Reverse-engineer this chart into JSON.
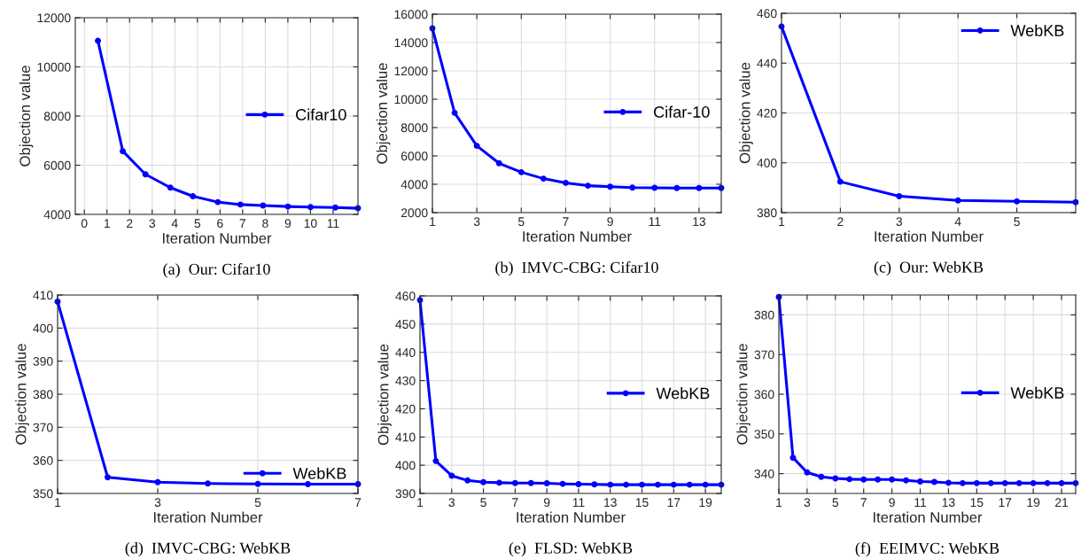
{
  "chart_data": [
    {
      "type": "line",
      "title": "(a)  Our: Cifar10",
      "xlabel": "Iteration Number",
      "ylabel": "Objection value",
      "x": [
        0.6,
        1.7,
        2.7,
        3.8,
        4.8,
        5.9,
        6.9,
        7.9,
        9.0,
        10.0,
        11.1,
        12.1
      ],
      "series": [
        {
          "name": "Cifar10",
          "color": "#0000ff",
          "values": [
            11060,
            6570,
            5630,
            5090,
            4740,
            4500,
            4400,
            4360,
            4320,
            4300,
            4280,
            4250
          ]
        }
      ],
      "xlim": [
        -0.4,
        12.1
      ],
      "xticks": [
        0,
        1,
        2,
        3,
        4,
        5,
        6,
        7,
        8,
        9,
        10,
        11
      ],
      "ylim": [
        4000,
        12000
      ],
      "yticks": [
        4000,
        6000,
        8000,
        10000,
        12000
      ],
      "grid": true,
      "legend": "center right",
      "marker": "circle",
      "line_style": "solid"
    },
    {
      "type": "line",
      "title": "(b)  IMVC-CBG: Cifar10",
      "xlabel": "Iteration Number",
      "ylabel": "Objection value",
      "x": [
        1,
        2,
        3,
        4,
        5,
        6,
        7,
        8,
        9,
        10,
        11,
        12,
        13,
        14
      ],
      "series": [
        {
          "name": "Cifar-10",
          "color": "#0000ff",
          "values": [
            15000,
            9040,
            6710,
            5480,
            4850,
            4400,
            4100,
            3900,
            3830,
            3770,
            3750,
            3730,
            3730,
            3730
          ]
        }
      ],
      "xlim": [
        1,
        14
      ],
      "xticks": [
        1,
        3,
        5,
        7,
        9,
        11,
        13
      ],
      "ylim": [
        2000,
        16000
      ],
      "yticks": [
        2000,
        4000,
        6000,
        8000,
        10000,
        12000,
        14000,
        16000
      ],
      "grid": true,
      "legend": "center right",
      "marker": "circle",
      "line_style": "solid"
    },
    {
      "type": "line",
      "title": "(c)  Our: WebKB",
      "xlabel": "Iteration Number",
      "ylabel": "Objection value",
      "x": [
        1,
        2,
        3,
        4,
        5,
        6
      ],
      "series": [
        {
          "name": "WebKB",
          "color": "#0000ff",
          "values": [
            454.7,
            392.4,
            386.6,
            384.9,
            384.5,
            384.2
          ]
        }
      ],
      "xlim": [
        1,
        6
      ],
      "xticks": [
        1,
        2,
        3,
        4,
        5
      ],
      "ylim": [
        380,
        460
      ],
      "yticks": [
        380,
        400,
        420,
        440,
        460
      ],
      "grid": true,
      "legend": "upper right",
      "marker": "circle",
      "line_style": "solid"
    },
    {
      "type": "line",
      "title": "(d)  IMVC-CBG: WebKB",
      "xlabel": "Iteration Number",
      "ylabel": "Objection value",
      "x": [
        1,
        2,
        3,
        4,
        5,
        6,
        7
      ],
      "series": [
        {
          "name": "WebKB",
          "color": "#0000ff",
          "values": [
            408,
            354.9,
            353.4,
            353.0,
            352.9,
            352.8,
            352.8
          ]
        }
      ],
      "xlim": [
        1,
        7
      ],
      "xticks": [
        1,
        3,
        5,
        7
      ],
      "ylim": [
        350,
        410
      ],
      "yticks": [
        350,
        360,
        370,
        380,
        390,
        400,
        410
      ],
      "grid": true,
      "legend": "lower right",
      "marker": "circle",
      "line_style": "solid"
    },
    {
      "type": "line",
      "title": "(e)  FLSD: WebKB",
      "xlabel": "Iteration Number",
      "ylabel": "Objection value",
      "x": [
        1,
        2,
        3,
        4,
        5,
        6,
        7,
        8,
        9,
        10,
        11,
        12,
        13,
        14,
        15,
        16,
        17,
        18,
        19,
        20
      ],
      "series": [
        {
          "name": "WebKB",
          "color": "#0000ff",
          "values": [
            458.5,
            401.5,
            396.3,
            394.6,
            394.0,
            393.8,
            393.7,
            393.7,
            393.6,
            393.4,
            393.3,
            393.2,
            393.1,
            393.1,
            393.1,
            393.1,
            393.1,
            393.1,
            393.1,
            393.1
          ]
        }
      ],
      "xlim": [
        1,
        20
      ],
      "xticks": [
        1,
        3,
        5,
        7,
        9,
        11,
        13,
        15,
        17,
        19
      ],
      "ylim": [
        390,
        460
      ],
      "yticks": [
        390,
        400,
        410,
        420,
        430,
        440,
        450,
        460
      ],
      "grid": true,
      "legend": "center right",
      "marker": "circle",
      "line_style": "solid"
    },
    {
      "type": "line",
      "title": "(f)  EEIMVC: WebKB",
      "xlabel": "Iteration Number",
      "ylabel": "Objection value",
      "x": [
        1,
        2,
        3,
        4,
        5,
        6,
        7,
        8,
        9,
        10,
        11,
        12,
        13,
        14,
        15,
        16,
        17,
        18,
        19,
        20,
        21,
        22
      ],
      "series": [
        {
          "name": "WebKB",
          "color": "#0000ff",
          "values": [
            384.5,
            344.0,
            340.3,
            339.2,
            338.8,
            338.6,
            338.5,
            338.5,
            338.5,
            338.3,
            338.0,
            337.9,
            337.7,
            337.6,
            337.6,
            337.6,
            337.6,
            337.6,
            337.6,
            337.6,
            337.6,
            337.6
          ]
        }
      ],
      "xlim": [
        1,
        22
      ],
      "xticks": [
        1,
        3,
        5,
        7,
        9,
        11,
        13,
        15,
        17,
        19,
        21
      ],
      "ylim": [
        335,
        385
      ],
      "yticks": [
        340,
        350,
        360,
        370,
        380
      ],
      "grid": true,
      "legend": "center right",
      "marker": "circle",
      "line_style": "solid"
    }
  ]
}
